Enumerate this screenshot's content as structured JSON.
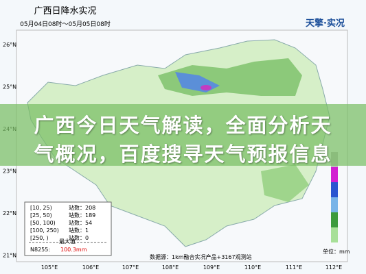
{
  "map": {
    "title": "广西日降水实况",
    "period": "05月04日08时～05月05日08时",
    "logo": "天擎·实况",
    "lat_labels": [
      "26°N",
      "25°N",
      "24°N",
      "23°N",
      "22°N",
      "21°N"
    ],
    "lon_labels": [
      "105°E",
      "106°E",
      "107°E",
      "108°E",
      "109°E",
      "110°E",
      "111°E",
      "112°E"
    ],
    "legend": {
      "rows": [
        {
          "range": "[10, 25)",
          "count": "站数：208"
        },
        {
          "range": "[25, 50)",
          "count": "站数：189"
        },
        {
          "range": "[50, 100)",
          "count": "站数：54"
        },
        {
          "range": "[100, 250)",
          "count": "站数：1"
        },
        {
          "range": "[250, )",
          "count": "站数：0"
        }
      ],
      "max_label": "最大值",
      "max_station": "N8255:",
      "max_value": "100.3mm"
    },
    "source": "数据源：1km融合实况产品+3167观测站",
    "unit": "单位：mm"
  },
  "headline_lines": [
    "广西今日天气解读，全面分析天",
    "气概况，百度搜寻天气预报信息"
  ]
}
